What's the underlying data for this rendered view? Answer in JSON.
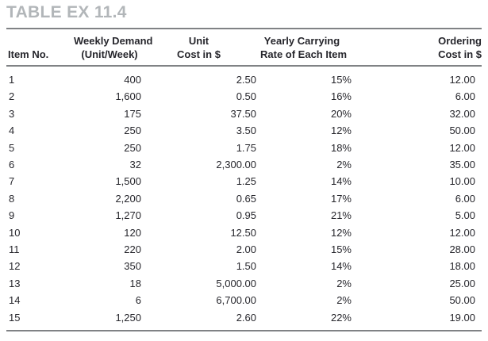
{
  "title": "TABLE EX 11.4",
  "colors": {
    "title_text": "#b2b6b9",
    "rule": "#808285",
    "body_text": "#26262c",
    "background": "#ffffff"
  },
  "table": {
    "column_names": [
      "item-no",
      "weekly-demand",
      "unit-cost",
      "carrying-rate",
      "ordering-cost"
    ],
    "columns": [
      {
        "line1": "",
        "line2": "Item No."
      },
      {
        "line1": "Weekly Demand",
        "line2": "(Unit/Week)"
      },
      {
        "line1": "Unit",
        "line2": "Cost in $"
      },
      {
        "line1": "Yearly Carrying",
        "line2": "Rate of Each Item"
      },
      {
        "line1": "Ordering",
        "line2": "Cost in $"
      }
    ],
    "rows": [
      [
        "1",
        "400",
        "2.50",
        "15%",
        "12.00"
      ],
      [
        "2",
        "1,600",
        "0.50",
        "16%",
        "6.00"
      ],
      [
        "3",
        "175",
        "37.50",
        "20%",
        "32.00"
      ],
      [
        "4",
        "250",
        "3.50",
        "12%",
        "50.00"
      ],
      [
        "5",
        "250",
        "1.75",
        "18%",
        "12.00"
      ],
      [
        "6",
        "32",
        "2,300.00",
        "2%",
        "35.00"
      ],
      [
        "7",
        "1,500",
        "1.25",
        "14%",
        "10.00"
      ],
      [
        "8",
        "2,200",
        "0.65",
        "17%",
        "6.00"
      ],
      [
        "9",
        "1,270",
        "0.95",
        "21%",
        "5.00"
      ],
      [
        "10",
        "120",
        "12.50",
        "12%",
        "12.00"
      ],
      [
        "11",
        "220",
        "2.00",
        "15%",
        "28.00"
      ],
      [
        "12",
        "350",
        "1.50",
        "14%",
        "18.00"
      ],
      [
        "13",
        "18",
        "5,000.00",
        "2%",
        "25.00"
      ],
      [
        "14",
        "6",
        "6,700.00",
        "2%",
        "50.00"
      ],
      [
        "15",
        "1,250",
        "2.60",
        "22%",
        "19.00"
      ]
    ]
  }
}
